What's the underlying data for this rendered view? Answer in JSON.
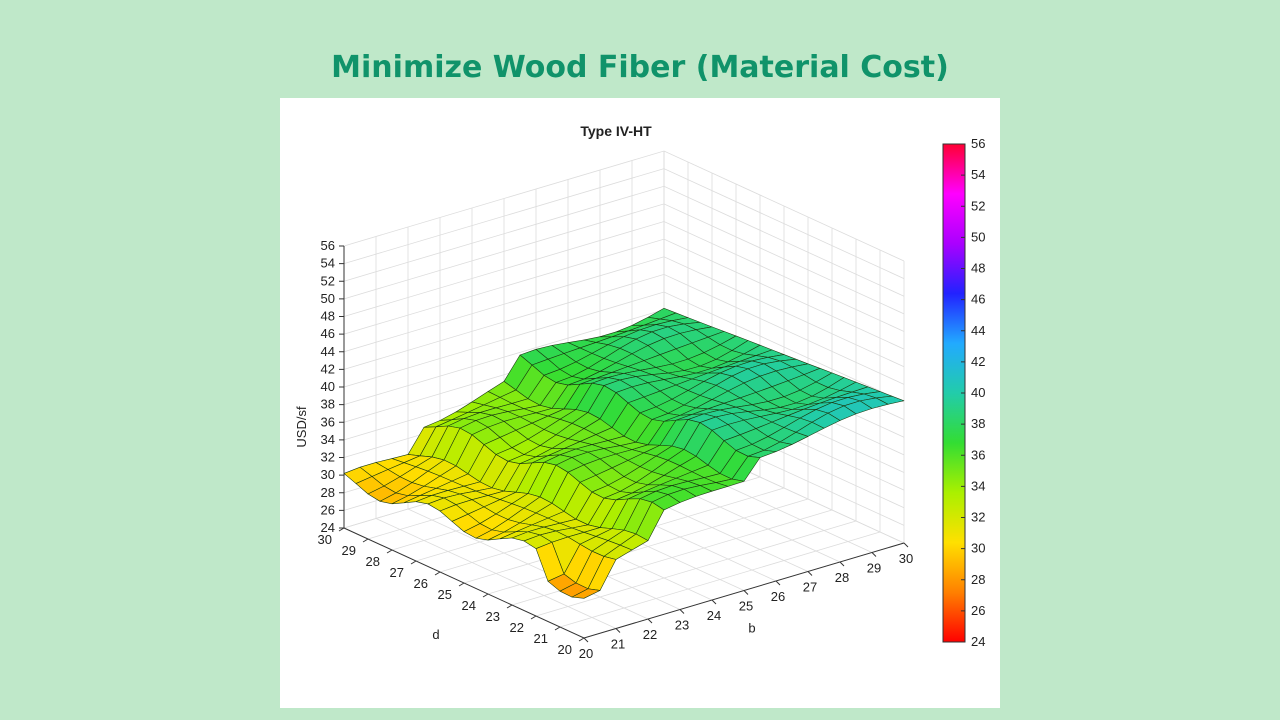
{
  "slide": {
    "title": "Minimize Wood Fiber (Material Cost)"
  },
  "chart_data": {
    "type": "surface",
    "title": "Type IV-HT",
    "xlabel": "b",
    "ylabel": "d",
    "zlabel": "USD/sf",
    "b_values": [
      20,
      20.5,
      21,
      21.5,
      22,
      22.5,
      23,
      23.5,
      24,
      24.5,
      25,
      25.5,
      26,
      26.5,
      27,
      27.5,
      28,
      28.5,
      29,
      29.5,
      30
    ],
    "d_values": [
      20,
      20.5,
      21,
      21.5,
      22,
      22.5,
      23,
      23.5,
      24,
      24.5,
      25,
      25.5,
      26,
      26.5,
      27,
      27.5,
      28,
      28.5,
      29,
      29.5,
      30
    ],
    "b_ticks": [
      20,
      21,
      22,
      23,
      24,
      25,
      26,
      27,
      28,
      29,
      30
    ],
    "d_ticks": [
      20,
      21,
      22,
      23,
      24,
      25,
      26,
      27,
      28,
      29,
      30
    ],
    "z_ticks": [
      24,
      26,
      28,
      30,
      32,
      34,
      36,
      38,
      40,
      42,
      44,
      46,
      48,
      50,
      52,
      54,
      56
    ],
    "zlim": [
      24,
      56
    ],
    "colorbar": {
      "range": [
        24,
        56
      ],
      "ticks": [
        24,
        26,
        28,
        30,
        32,
        34,
        36,
        38,
        40,
        42,
        44,
        46,
        48,
        50,
        52,
        54,
        56
      ],
      "colors": [
        "#ff0000",
        "#ff8000",
        "#ffe000",
        "#aaf000",
        "#33dd33",
        "#22ccaa",
        "#22aaff",
        "#2222ff",
        "#aa00ff",
        "#ff00ff",
        "#ff0033"
      ]
    },
    "surface_colors": {
      "low": "#ffff00",
      "mid": "#55ee22",
      "high": "#22ee88"
    },
    "grid": true
  }
}
